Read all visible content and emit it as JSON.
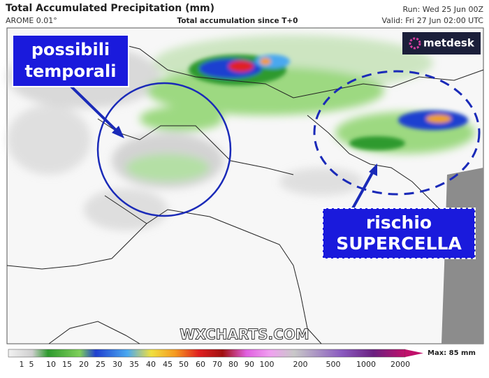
{
  "header": {
    "title": "Total Accumulated Precipitation (mm)",
    "model": "AROME 0.01°",
    "subtitle": "Total accumulation since T+0",
    "run": "Run: Wed 25 Jun 00Z",
    "valid": "Valid: Fri 27 Jun 02:00 UTC"
  },
  "logo": "metdesk",
  "annotations": [
    {
      "lines": [
        "possibili",
        "temporali"
      ]
    },
    {
      "lines": [
        "rischio",
        "SUPERCELLA"
      ]
    }
  ],
  "watermark": "WXCHARTS.COM",
  "legend": {
    "ticks": [
      1,
      5,
      10,
      15,
      20,
      25,
      30,
      35,
      40,
      45,
      50,
      60,
      70,
      80,
      90,
      100,
      200,
      500,
      1000,
      2000
    ],
    "max": "Max: 85 mm"
  }
}
